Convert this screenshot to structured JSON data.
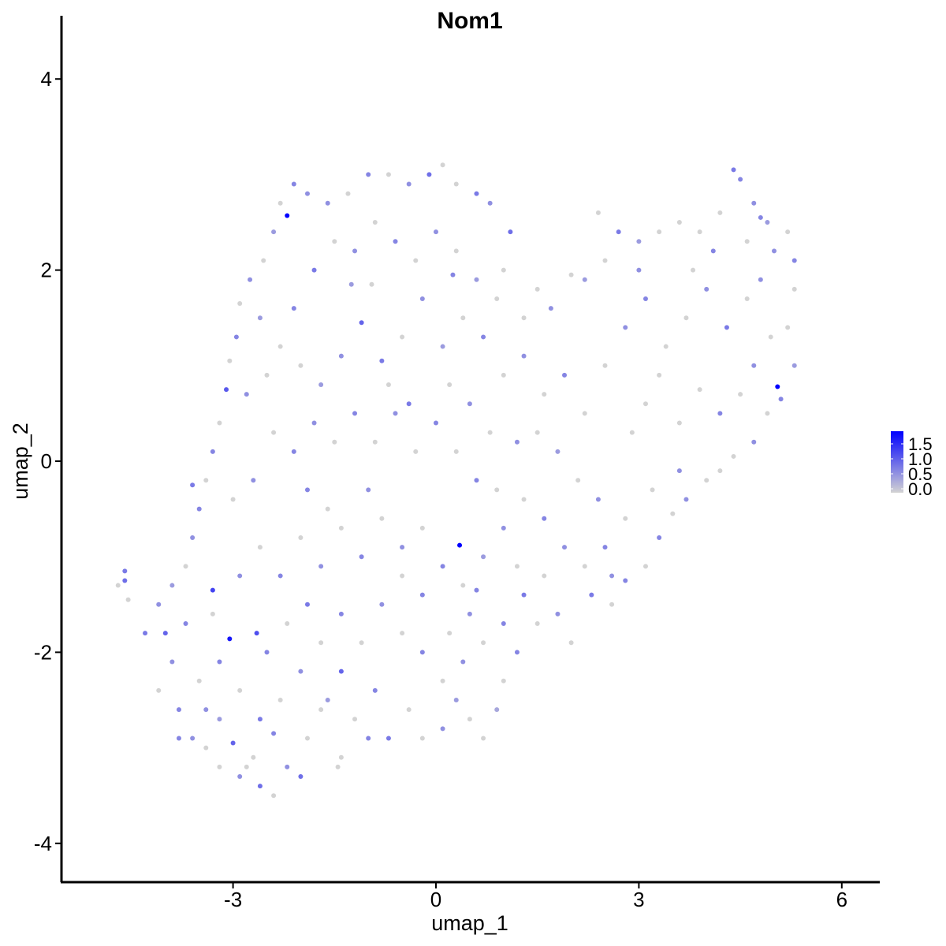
{
  "chart_data": {
    "type": "scatter",
    "title": "Nom1",
    "xlabel": "umap_1",
    "ylabel": "umap_2",
    "xlim": [
      -5.5,
      6.6
    ],
    "ylim": [
      -4.4,
      4.65
    ],
    "xticks": [
      -3,
      0,
      3,
      6
    ],
    "yticks": [
      -4,
      -2,
      0,
      2,
      4
    ],
    "xtick_labels": [
      "-3",
      "0",
      "3",
      "6"
    ],
    "ytick_labels": [
      "-4",
      "-2",
      "0",
      "2",
      "4"
    ],
    "grid": false,
    "legend": {
      "placement": "right",
      "type": "colorbar",
      "range": [
        0,
        1.9
      ],
      "ticks": [
        0,
        0.5,
        1.0,
        1.5
      ],
      "tick_labels": [
        "0.0",
        "0.5",
        "1.0",
        "1.5"
      ],
      "low_color": "#d3d3d3",
      "high_color": "#0000ff"
    },
    "points_format": [
      "umap_1",
      "umap_2",
      "expression"
    ],
    "points": [
      [
        -2.2,
        2.57,
        1.9
      ],
      [
        5.05,
        0.78,
        1.9
      ],
      [
        0.35,
        -0.88,
        1.9
      ],
      [
        -3.05,
        -1.86,
        1.7
      ],
      [
        -3.3,
        -1.35,
        1.3
      ],
      [
        -2.65,
        -1.8,
        1.2
      ],
      [
        -4.7,
        -1.3,
        0
      ],
      [
        -4.6,
        -1.15,
        0.8
      ],
      [
        -4.6,
        -1.25,
        0.9
      ],
      [
        -4.55,
        -1.45,
        0
      ],
      [
        -4.3,
        -1.8,
        0.8
      ],
      [
        -4.1,
        -1.5,
        0.6
      ],
      [
        -4.0,
        -1.8,
        1.0
      ],
      [
        -3.9,
        -2.1,
        0.6
      ],
      [
        -4.1,
        -2.4,
        0
      ],
      [
        -3.8,
        -2.6,
        0.7
      ],
      [
        -3.6,
        -2.9,
        0.6
      ],
      [
        -3.4,
        -3.0,
        0
      ],
      [
        -3.2,
        -2.7,
        0.5
      ],
      [
        -3.0,
        -2.95,
        1.0
      ],
      [
        -2.8,
        -3.2,
        0
      ],
      [
        -2.6,
        -3.4,
        0.9
      ],
      [
        -2.4,
        -3.5,
        0
      ],
      [
        -2.2,
        -3.2,
        0.6
      ],
      [
        -2.0,
        -3.3,
        0.9
      ],
      [
        -1.9,
        -2.9,
        0
      ],
      [
        -1.6,
        -2.5,
        0.5
      ],
      [
        -1.4,
        -2.2,
        1.0
      ],
      [
        -1.4,
        -3.1,
        0
      ],
      [
        -1.2,
        -2.7,
        0
      ],
      [
        -0.9,
        -2.4,
        0.7
      ],
      [
        -0.7,
        -2.9,
        0.8
      ],
      [
        -0.4,
        -2.6,
        0
      ],
      [
        -0.2,
        -2.9,
        0
      ],
      [
        0.1,
        -2.8,
        0.6
      ],
      [
        0.3,
        -2.5,
        0.5
      ],
      [
        0.5,
        -2.7,
        0
      ],
      [
        0.7,
        -2.9,
        0
      ],
      [
        0.9,
        -2.6,
        0.4
      ],
      [
        1.0,
        -2.3,
        0
      ],
      [
        1.2,
        -2.0,
        0.7
      ],
      [
        1.5,
        -1.7,
        0
      ],
      [
        1.8,
        -1.6,
        0.6
      ],
      [
        2.0,
        -1.9,
        0
      ],
      [
        2.3,
        -1.4,
        0.8
      ],
      [
        2.6,
        -1.5,
        0
      ],
      [
        2.8,
        -1.25,
        0.7
      ],
      [
        3.1,
        -1.1,
        0
      ],
      [
        3.3,
        -0.8,
        0.7
      ],
      [
        3.5,
        -0.55,
        0
      ],
      [
        3.7,
        -0.4,
        0.6
      ],
      [
        4.0,
        -0.2,
        0
      ],
      [
        4.2,
        -0.1,
        0
      ],
      [
        4.4,
        0.05,
        0
      ],
      [
        4.7,
        0.2,
        0.6
      ],
      [
        4.9,
        0.5,
        0
      ],
      [
        5.1,
        0.65,
        0.7
      ],
      [
        5.3,
        1.0,
        0.5
      ],
      [
        5.2,
        1.4,
        0
      ],
      [
        5.3,
        1.8,
        0
      ],
      [
        5.3,
        2.1,
        0.7
      ],
      [
        5.2,
        2.4,
        0
      ],
      [
        4.9,
        2.5,
        0.5
      ],
      [
        4.7,
        2.7,
        0.6
      ],
      [
        4.5,
        2.95,
        0.7
      ],
      [
        4.4,
        3.05,
        0.8
      ],
      [
        4.2,
        2.6,
        0
      ],
      [
        3.9,
        2.4,
        0
      ],
      [
        3.6,
        2.5,
        0
      ],
      [
        3.3,
        2.4,
        0
      ],
      [
        3.0,
        2.3,
        0.5
      ],
      [
        2.7,
        2.4,
        0.8
      ],
      [
        2.5,
        2.1,
        0
      ],
      [
        2.2,
        1.9,
        0.5
      ],
      [
        2.0,
        1.95,
        0
      ],
      [
        1.7,
        1.6,
        0.6
      ],
      [
        1.5,
        1.8,
        0
      ],
      [
        1.3,
        1.5,
        0
      ],
      [
        1.0,
        2.0,
        0
      ],
      [
        0.8,
        2.7,
        0.6
      ],
      [
        0.6,
        2.8,
        0.8
      ],
      [
        0.3,
        2.9,
        0
      ],
      [
        0.1,
        3.1,
        0
      ],
      [
        -0.1,
        3.0,
        0.9
      ],
      [
        -0.4,
        2.9,
        0.6
      ],
      [
        -0.7,
        3.0,
        0
      ],
      [
        -1.0,
        3.0,
        0.7
      ],
      [
        -1.3,
        2.8,
        0
      ],
      [
        -1.6,
        2.7,
        0.6
      ],
      [
        -1.9,
        2.8,
        0.6
      ],
      [
        -2.1,
        2.9,
        0.7
      ],
      [
        -2.3,
        2.7,
        0
      ],
      [
        -2.4,
        2.4,
        0.5
      ],
      [
        -2.55,
        2.1,
        0
      ],
      [
        -2.75,
        1.9,
        0.6
      ],
      [
        -2.9,
        1.65,
        0
      ],
      [
        -2.95,
        1.3,
        0.7
      ],
      [
        -3.05,
        1.05,
        0
      ],
      [
        -3.1,
        0.75,
        1.1
      ],
      [
        -3.2,
        0.4,
        0
      ],
      [
        -3.3,
        0.1,
        0.7
      ],
      [
        -3.4,
        -0.2,
        0
      ],
      [
        -3.5,
        -0.5,
        0.7
      ],
      [
        -3.6,
        -0.8,
        0.6
      ],
      [
        -3.6,
        -0.25,
        0.8
      ],
      [
        -3.7,
        -1.1,
        0
      ],
      [
        -3.9,
        -1.3,
        0.5
      ],
      [
        -2.6,
        1.5,
        0.5
      ],
      [
        -2.3,
        1.2,
        0
      ],
      [
        -2.1,
        1.6,
        0.7
      ],
      [
        -1.8,
        2.0,
        0.8
      ],
      [
        -1.5,
        2.3,
        0
      ],
      [
        -1.2,
        2.2,
        0.6
      ],
      [
        -0.9,
        2.5,
        0
      ],
      [
        -0.6,
        2.3,
        0.7
      ],
      [
        -0.3,
        2.1,
        0
      ],
      [
        0.0,
        2.4,
        0.6
      ],
      [
        0.3,
        2.2,
        0
      ],
      [
        0.6,
        1.9,
        0.5
      ],
      [
        0.9,
        1.7,
        0
      ],
      [
        1.1,
        2.4,
        0.9
      ],
      [
        -2.0,
        1.0,
        0
      ],
      [
        -1.7,
        0.8,
        0.5
      ],
      [
        -1.4,
        1.1,
        0.6
      ],
      [
        -1.1,
        1.45,
        1.0
      ],
      [
        -0.8,
        1.05,
        0.8
      ],
      [
        -0.5,
        1.3,
        0
      ],
      [
        -0.2,
        1.7,
        0.6
      ],
      [
        0.1,
        1.2,
        0.5
      ],
      [
        0.4,
        1.5,
        0
      ],
      [
        0.7,
        1.3,
        0.7
      ],
      [
        1.0,
        0.9,
        0
      ],
      [
        1.3,
        1.1,
        0.6
      ],
      [
        1.6,
        0.7,
        0
      ],
      [
        1.9,
        0.9,
        0.7
      ],
      [
        2.2,
        0.5,
        0
      ],
      [
        2.5,
        1.0,
        0
      ],
      [
        2.8,
        1.4,
        0.6
      ],
      [
        3.1,
        1.7,
        0.7
      ],
      [
        3.4,
        1.2,
        0
      ],
      [
        3.7,
        1.5,
        0
      ],
      [
        4.0,
        1.8,
        0.6
      ],
      [
        4.3,
        1.4,
        0.8
      ],
      [
        4.6,
        1.7,
        0
      ],
      [
        4.8,
        1.9,
        0.6
      ],
      [
        4.95,
        1.3,
        0
      ],
      [
        4.7,
        1.0,
        0.6
      ],
      [
        4.5,
        0.7,
        0
      ],
      [
        4.2,
        0.5,
        0.7
      ],
      [
        3.9,
        0.75,
        0
      ],
      [
        3.6,
        0.4,
        0
      ],
      [
        3.3,
        0.9,
        0
      ],
      [
        3.1,
        0.6,
        0
      ],
      [
        2.9,
        0.3,
        0
      ],
      [
        3.6,
        -0.1,
        0.6
      ],
      [
        3.2,
        -0.3,
        0
      ],
      [
        2.8,
        -0.6,
        0
      ],
      [
        2.5,
        -0.9,
        0.7
      ],
      [
        2.2,
        -1.1,
        0
      ],
      [
        1.9,
        -0.9,
        0.6
      ],
      [
        1.6,
        -1.2,
        0
      ],
      [
        1.3,
        -1.4,
        0.8
      ],
      [
        1.0,
        -1.7,
        0.7
      ],
      [
        0.7,
        -1.9,
        0
      ],
      [
        0.4,
        -2.1,
        0.6
      ],
      [
        0.1,
        -2.3,
        0
      ],
      [
        -0.2,
        -2.0,
        0.7
      ],
      [
        -0.5,
        -1.8,
        0
      ],
      [
        -0.8,
        -1.5,
        0.6
      ],
      [
        -1.1,
        -1.9,
        0
      ],
      [
        -1.4,
        -1.6,
        0.7
      ],
      [
        -1.7,
        -1.9,
        0
      ],
      [
        -2.0,
        -2.2,
        0.6
      ],
      [
        -2.3,
        -2.5,
        0
      ],
      [
        -2.6,
        -2.7,
        0.8
      ],
      [
        -2.9,
        -2.4,
        0
      ],
      [
        -3.2,
        -2.1,
        0.7
      ],
      [
        -3.5,
        -2.3,
        0
      ],
      [
        -3.7,
        -1.7,
        0.7
      ],
      [
        -3.3,
        -1.6,
        0
      ],
      [
        -2.9,
        -1.2,
        0.6
      ],
      [
        -2.6,
        -0.9,
        0
      ],
      [
        -2.3,
        -1.2,
        0.7
      ],
      [
        -2.0,
        -0.8,
        0
      ],
      [
        -1.7,
        -1.1,
        0.6
      ],
      [
        -1.4,
        -0.7,
        0
      ],
      [
        -1.1,
        -1.0,
        0.7
      ],
      [
        -0.8,
        -0.6,
        0
      ],
      [
        -0.5,
        -0.9,
        0.6
      ],
      [
        -0.2,
        -0.7,
        0
      ],
      [
        0.1,
        -1.1,
        0.7
      ],
      [
        0.4,
        -1.3,
        0
      ],
      [
        0.7,
        -1.0,
        0.5
      ],
      [
        1.0,
        -0.7,
        0.6
      ],
      [
        1.3,
        -0.4,
        0
      ],
      [
        1.6,
        -0.6,
        0.7
      ],
      [
        0.9,
        -0.3,
        0
      ],
      [
        0.6,
        -0.2,
        0.7
      ],
      [
        0.3,
        0.1,
        0
      ],
      [
        0.0,
        0.4,
        0.7
      ],
      [
        -0.3,
        0.1,
        0
      ],
      [
        -0.6,
        0.5,
        0.6
      ],
      [
        -0.9,
        0.2,
        0
      ],
      [
        -1.2,
        0.5,
        0.7
      ],
      [
        -1.5,
        0.2,
        0
      ],
      [
        -1.8,
        0.4,
        0.6
      ],
      [
        -2.1,
        0.1,
        0.7
      ],
      [
        -2.4,
        0.3,
        0
      ],
      [
        -2.7,
        -0.2,
        0.6
      ],
      [
        -3.0,
        -0.4,
        0
      ],
      [
        -2.8,
        0.7,
        0.6
      ],
      [
        -2.5,
        0.9,
        0
      ],
      [
        -1.9,
        -0.3,
        0.7
      ],
      [
        -1.6,
        -0.5,
        0
      ],
      [
        -1.0,
        -0.3,
        0.6
      ],
      [
        -0.7,
        0.8,
        0
      ],
      [
        -0.4,
        0.6,
        0.8
      ],
      [
        0.2,
        0.8,
        0
      ],
      [
        0.5,
        0.6,
        0.6
      ],
      [
        0.8,
        0.3,
        0
      ],
      [
        1.2,
        0.2,
        0.6
      ],
      [
        1.5,
        0.3,
        0
      ],
      [
        1.8,
        0.1,
        0.5
      ],
      [
        2.1,
        -0.2,
        0
      ],
      [
        2.4,
        -0.4,
        0.6
      ],
      [
        -0.2,
        -1.4,
        0.7
      ],
      [
        -0.5,
        -1.2,
        0
      ],
      [
        0.5,
        -1.6,
        0.6
      ],
      [
        0.2,
        -1.8,
        0
      ],
      [
        -2.5,
        -2.0,
        0.7
      ],
      [
        -2.2,
        -1.7,
        0
      ],
      [
        -1.9,
        -1.5,
        0.8
      ],
      [
        -3.4,
        -2.6,
        0.6
      ],
      [
        -2.7,
        -3.1,
        0
      ],
      [
        -2.4,
        -2.85,
        0.7
      ],
      [
        -1.7,
        -2.6,
        0
      ],
      [
        -1.0,
        -2.9,
        0.7
      ],
      [
        4.1,
        2.2,
        0.7
      ],
      [
        3.8,
        2.0,
        0
      ],
      [
        2.4,
        2.6,
        0
      ],
      [
        3.0,
        2.0,
        0.6
      ],
      [
        4.6,
        2.3,
        0
      ],
      [
        4.8,
        2.55,
        0.7
      ],
      [
        5.0,
        2.2,
        0.6
      ],
      [
        -3.8,
        -2.9,
        0.7
      ],
      [
        -3.2,
        -3.2,
        0
      ],
      [
        -2.9,
        -3.3,
        0.6
      ],
      [
        -1.45,
        -3.2,
        0
      ],
      [
        0.6,
        -1.35,
        0.7
      ],
      [
        1.2,
        -1.1,
        0
      ],
      [
        2.6,
        -1.2,
        0.6
      ],
      [
        -1.25,
        1.85,
        0.5
      ],
      [
        0.25,
        1.95,
        0.7
      ],
      [
        -0.95,
        1.85,
        0
      ]
    ]
  }
}
